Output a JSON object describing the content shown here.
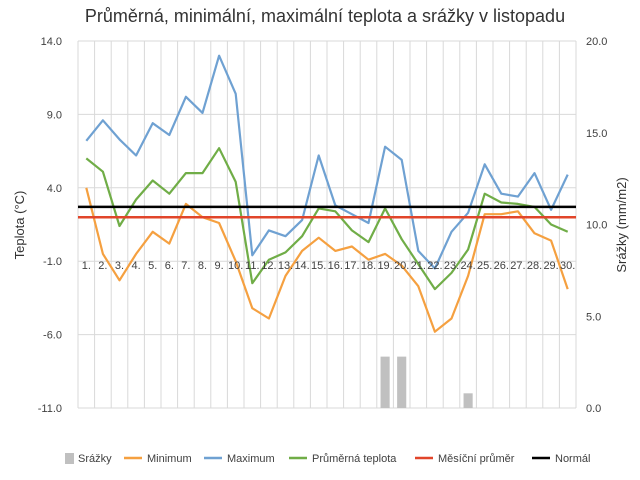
{
  "chart_data": {
    "type": "line",
    "title": "Průměrná, minimální, maximální teplota a srážky v listopadu",
    "ylabel": "Teplota (°C)",
    "y2label": "Srážky (mm/m2)",
    "ylim": [
      -11,
      14
    ],
    "y2lim": [
      0,
      20
    ],
    "yticks": [
      "14.0",
      "9.0",
      "4.0",
      "-1.0",
      "-6.0",
      "-11.0"
    ],
    "y2ticks": [
      "20.0",
      "15.0",
      "10.0",
      "5.0",
      "0.0"
    ],
    "categories": [
      "1.",
      "2.",
      "3.",
      "4.",
      "5.",
      "6.",
      "7.",
      "8.",
      "9.",
      "10.",
      "11.",
      "12.",
      "13.",
      "14.",
      "15.",
      "16.",
      "17.",
      "18.",
      "19.",
      "20.",
      "21.",
      "22.",
      "23.",
      "24.",
      "25.",
      "26.",
      "27.",
      "28.",
      "29.",
      "30."
    ],
    "grid": true,
    "legend_position": "bottom",
    "series": [
      {
        "name": "Srážky",
        "kind": "bar",
        "axis": "y2",
        "color": "#c0c0c0",
        "values": [
          0,
          0,
          0,
          0,
          0,
          0,
          0,
          0,
          0,
          0,
          0,
          0,
          0,
          0,
          0,
          0,
          0,
          0,
          2.8,
          2.8,
          0,
          0,
          0,
          0.8,
          0,
          0,
          0,
          0,
          0,
          0
        ]
      },
      {
        "name": "Minimum",
        "kind": "line",
        "axis": "y",
        "color": "#f5a040",
        "values": [
          4.0,
          -0.5,
          -2.3,
          -0.5,
          1.0,
          0.2,
          2.9,
          2.0,
          1.6,
          -1.0,
          -4.2,
          -4.9,
          -2.0,
          -0.3,
          0.6,
          -0.3,
          0.0,
          -0.9,
          -0.5,
          -1.3,
          -2.7,
          -5.8,
          -4.9,
          -2.0,
          2.2,
          2.2,
          2.4,
          0.9,
          0.4,
          -2.9
        ]
      },
      {
        "name": "Maximum",
        "kind": "line",
        "axis": "y",
        "color": "#6fa1d2",
        "values": [
          7.2,
          8.6,
          7.3,
          6.2,
          8.4,
          7.6,
          10.2,
          9.1,
          13.0,
          10.4,
          -0.6,
          1.1,
          0.7,
          1.8,
          6.2,
          2.8,
          2.2,
          1.6,
          6.8,
          5.9,
          -0.3,
          -1.5,
          1.0,
          2.3,
          5.6,
          3.6,
          3.4,
          5.0,
          2.5,
          4.9
        ]
      },
      {
        "name": "Průměrná teplota",
        "kind": "line",
        "axis": "y",
        "color": "#70ad47",
        "values": [
          6.0,
          5.1,
          1.4,
          3.2,
          4.5,
          3.6,
          5.0,
          5.0,
          6.7,
          4.4,
          -2.5,
          -0.9,
          -0.4,
          0.7,
          2.6,
          2.4,
          1.1,
          0.3,
          2.6,
          0.5,
          -1.2,
          -2.9,
          -1.8,
          -0.2,
          3.6,
          3.0,
          2.9,
          2.7,
          1.5,
          1.0
        ]
      },
      {
        "name": "Měsíční průměr",
        "kind": "line",
        "axis": "y",
        "color": "#e1452a",
        "values": [
          2.0,
          2.0,
          2.0,
          2.0,
          2.0,
          2.0,
          2.0,
          2.0,
          2.0,
          2.0,
          2.0,
          2.0,
          2.0,
          2.0,
          2.0,
          2.0,
          2.0,
          2.0,
          2.0,
          2.0,
          2.0,
          2.0,
          2.0,
          2.0,
          2.0,
          2.0,
          2.0,
          2.0,
          2.0,
          2.0
        ]
      },
      {
        "name": "Normál",
        "kind": "line",
        "axis": "y",
        "color": "#000000",
        "values": [
          2.7,
          2.7,
          2.7,
          2.7,
          2.7,
          2.7,
          2.7,
          2.7,
          2.7,
          2.7,
          2.7,
          2.7,
          2.7,
          2.7,
          2.7,
          2.7,
          2.7,
          2.7,
          2.7,
          2.7,
          2.7,
          2.7,
          2.7,
          2.7,
          2.7,
          2.7,
          2.7,
          2.7,
          2.7,
          2.7
        ]
      }
    ]
  }
}
